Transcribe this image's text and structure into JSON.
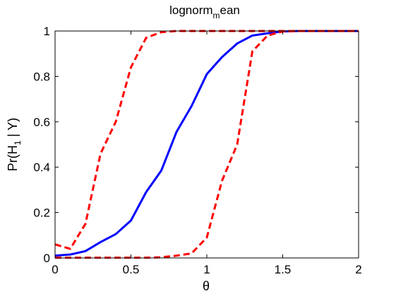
{
  "chart_data": {
    "type": "line",
    "title_main": "lognorm",
    "title_sub": "m",
    "title_tail": "ean",
    "xlabel": "θ",
    "ylabel_prefix": "Pr(H",
    "ylabel_sub": "1",
    "ylabel_suffix": " | Y)",
    "xlim": [
      0,
      2
    ],
    "ylim": [
      0,
      1
    ],
    "x_ticks": [
      0,
      0.5,
      1,
      1.5,
      2
    ],
    "x_tick_labels": [
      "0",
      "0.5",
      "1",
      "1.5",
      "2"
    ],
    "y_ticks": [
      0,
      0.2,
      0.4,
      0.6,
      0.8,
      1
    ],
    "y_tick_labels": [
      "0",
      "0.2",
      "0.4",
      "0.6",
      "0.8",
      "1"
    ],
    "grid": false,
    "series": [
      {
        "color": "#0000ff",
        "style": "solid",
        "x": [
          0,
          0.1,
          0.2,
          0.3,
          0.4,
          0.5,
          0.6,
          0.7,
          0.8,
          0.9,
          1.0,
          1.1,
          1.2,
          1.3,
          1.4,
          1.5,
          1.6,
          1.7,
          1.8,
          1.9,
          2.0
        ],
        "y": [
          0.01,
          0.015,
          0.03,
          0.07,
          0.105,
          0.165,
          0.29,
          0.385,
          0.555,
          0.67,
          0.81,
          0.885,
          0.945,
          0.98,
          0.99,
          0.998,
          1,
          1,
          1,
          1,
          1
        ]
      },
      {
        "color": "#ff0000",
        "style": "dashed",
        "x": [
          0,
          0.1,
          0.2,
          0.3,
          0.4,
          0.5,
          0.6,
          0.7,
          0.8,
          0.9,
          1.0,
          1.1,
          1.2,
          1.3,
          1.4,
          1.5,
          1.6,
          1.7,
          1.8,
          1.9,
          2.0
        ],
        "y": [
          0.06,
          0.04,
          0.15,
          0.46,
          0.6,
          0.84,
          0.97,
          0.995,
          1,
          1,
          1,
          1,
          1,
          1,
          1,
          1,
          1,
          1,
          1,
          1,
          1
        ]
      },
      {
        "color": "#ff0000",
        "style": "dashed",
        "x": [
          0,
          0.1,
          0.2,
          0.3,
          0.4,
          0.5,
          0.6,
          0.7,
          0.8,
          0.9,
          1.0,
          1.1,
          1.2,
          1.3,
          1.4,
          1.5,
          1.6,
          1.7,
          1.8,
          1.9,
          2.0
        ],
        "y": [
          0.001,
          0.001,
          0.001,
          0.001,
          0.001,
          0.001,
          0.001,
          0.003,
          0.01,
          0.02,
          0.09,
          0.34,
          0.5,
          0.91,
          0.98,
          0.998,
          1,
          1,
          1,
          1,
          1
        ]
      }
    ]
  }
}
